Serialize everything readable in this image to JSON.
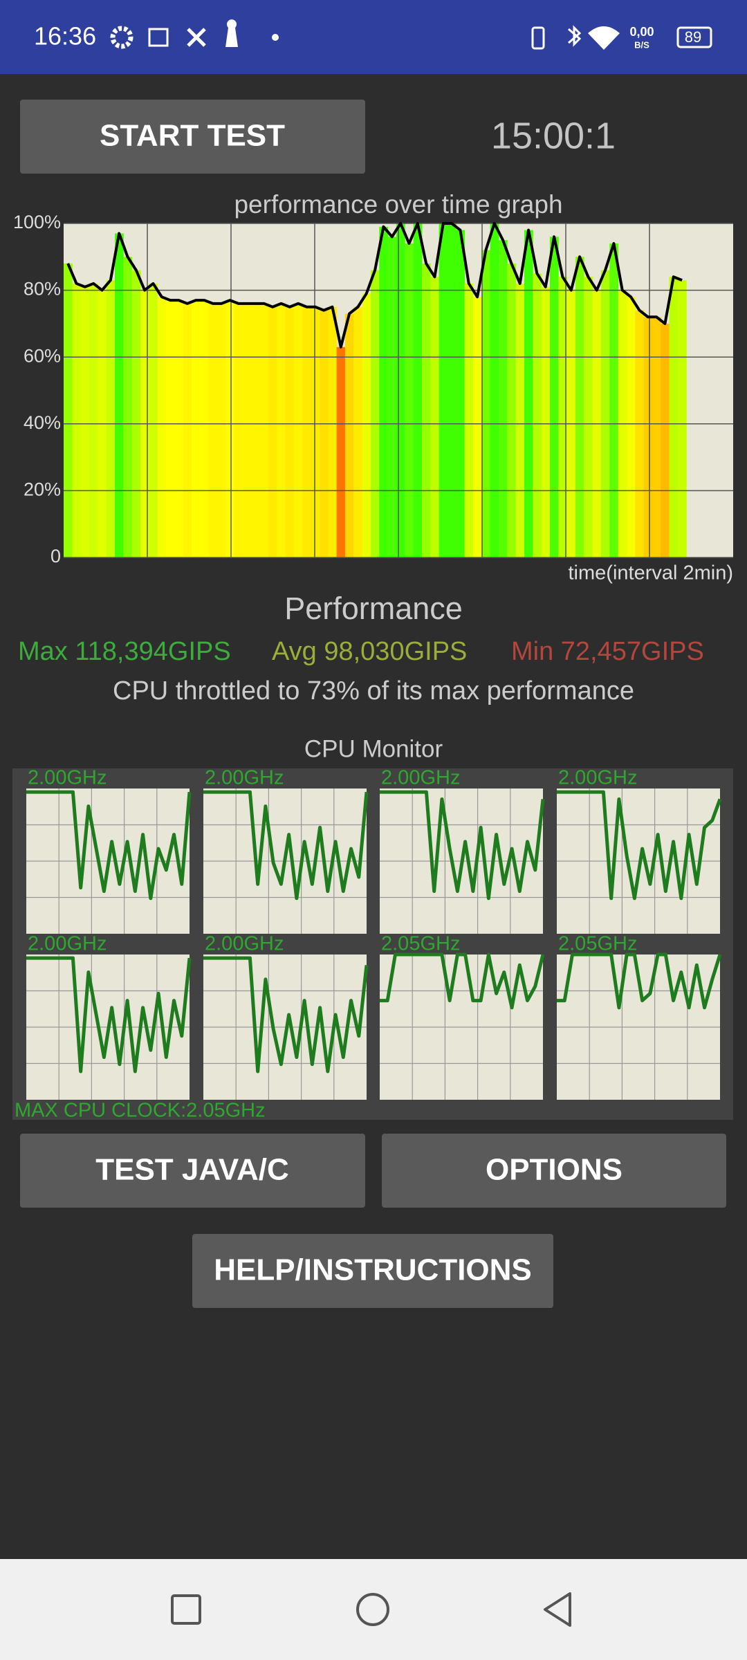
{
  "status_bar": {
    "time": "16:36",
    "net_speed": "0,00",
    "net_unit": "B/S",
    "battery": "89"
  },
  "controls": {
    "start_button": "START TEST",
    "timer": "15:00:1"
  },
  "performance_graph": {
    "type": "area",
    "title": "performance over time graph",
    "x_label": "time(interval 2min)",
    "ylim": [
      0,
      100
    ],
    "yticks": [
      0,
      {
        "value": 20,
        "label": "20%"
      },
      {
        "value": 40,
        "label": "40%"
      },
      {
        "value": 60,
        "label": "60%"
      },
      {
        "value": 80,
        "label": "80%"
      },
      {
        "value": 100,
        "label": "100%"
      }
    ],
    "grid": true,
    "line_color": "#000000",
    "values": [
      88,
      82,
      81,
      82,
      80,
      83,
      97,
      90,
      86,
      80,
      82,
      78,
      77,
      77,
      76,
      77,
      77,
      76,
      76,
      77,
      76,
      76,
      76,
      76,
      75,
      76,
      75,
      76,
      75,
      75,
      74,
      75,
      63,
      73,
      75,
      79,
      86,
      99,
      96,
      100,
      94,
      100,
      88,
      84,
      100,
      100,
      98,
      82,
      78,
      92,
      100,
      95,
      88,
      82,
      98,
      85,
      81,
      96,
      84,
      80,
      90,
      84,
      80,
      86,
      94,
      80,
      78,
      74,
      72,
      72,
      70,
      84,
      83
    ]
  },
  "performance": {
    "heading": "Performance",
    "max": "Max 118,394GIPS",
    "avg": "Avg 98,030GIPS",
    "min": "Min 72,457GIPS",
    "throttle": "CPU throttled to 73% of its max performance"
  },
  "cpu_monitor": {
    "title": "CPU Monitor",
    "ylim": [
      0,
      2.05
    ],
    "color": "#1e7b1e",
    "cores": [
      {
        "label": "2.00GHz",
        "values": [
          2,
          2,
          2,
          2,
          2,
          2,
          2,
          0.65,
          1.8,
          1.2,
          0.6,
          1.3,
          0.7,
          1.3,
          0.6,
          1.4,
          0.5,
          1.2,
          0.9,
          1.4,
          0.7,
          2
        ]
      },
      {
        "label": "2.00GHz",
        "values": [
          2,
          2,
          2,
          2,
          2,
          2,
          2,
          0.7,
          1.8,
          1.0,
          0.7,
          1.4,
          0.5,
          1.3,
          0.7,
          1.5,
          0.6,
          1.3,
          0.6,
          1.2,
          0.8,
          2
        ]
      },
      {
        "label": "2.00GHz",
        "values": [
          2,
          2,
          2,
          2,
          2,
          2,
          2,
          0.6,
          1.9,
          1.2,
          0.6,
          1.3,
          0.6,
          1.5,
          0.5,
          1.4,
          0.7,
          1.2,
          0.6,
          1.3,
          0.9,
          1.9
        ]
      },
      {
        "label": "2.00GHz",
        "values": [
          2,
          2,
          2,
          2,
          2,
          2,
          2,
          0.5,
          1.9,
          1.1,
          0.5,
          1.2,
          0.7,
          1.4,
          0.6,
          1.3,
          0.5,
          1.4,
          0.7,
          1.5,
          1.6,
          1.9
        ]
      },
      {
        "label": "2.00GHz",
        "values": [
          2,
          2,
          2,
          2,
          2,
          2,
          2,
          0.4,
          1.8,
          1.2,
          0.6,
          1.3,
          0.5,
          1.4,
          0.4,
          1.3,
          0.7,
          1.5,
          0.6,
          1.4,
          0.9,
          2
        ]
      },
      {
        "label": "2.00GHz",
        "values": [
          2,
          2,
          2,
          2,
          2,
          2,
          2,
          0.4,
          1.7,
          1.0,
          0.5,
          1.2,
          0.6,
          1.4,
          0.5,
          1.3,
          0.4,
          1.2,
          0.6,
          1.4,
          0.9,
          1.9
        ]
      },
      {
        "label": "2.05GHz",
        "values": [
          1.4,
          1.4,
          2.05,
          2.05,
          2.05,
          2.05,
          2.05,
          2.05,
          2.05,
          1.4,
          2.05,
          2.05,
          1.4,
          1.4,
          2.05,
          1.5,
          1.8,
          1.3,
          1.9,
          1.4,
          1.6,
          2.05
        ]
      },
      {
        "label": "2.05GHz",
        "values": [
          1.4,
          1.4,
          2.05,
          2.05,
          2.05,
          2.05,
          2.05,
          2.05,
          1.3,
          2.05,
          2.05,
          1.4,
          1.5,
          2.05,
          2.05,
          1.4,
          1.8,
          1.3,
          1.9,
          1.3,
          1.7,
          2.05
        ]
      }
    ],
    "max_clock": "MAX CPU CLOCK:2.05GHz"
  },
  "buttons": {
    "test": "TEST JAVA/C",
    "options": "OPTIONS",
    "help": "HELP/INSTRUCTIONS"
  }
}
